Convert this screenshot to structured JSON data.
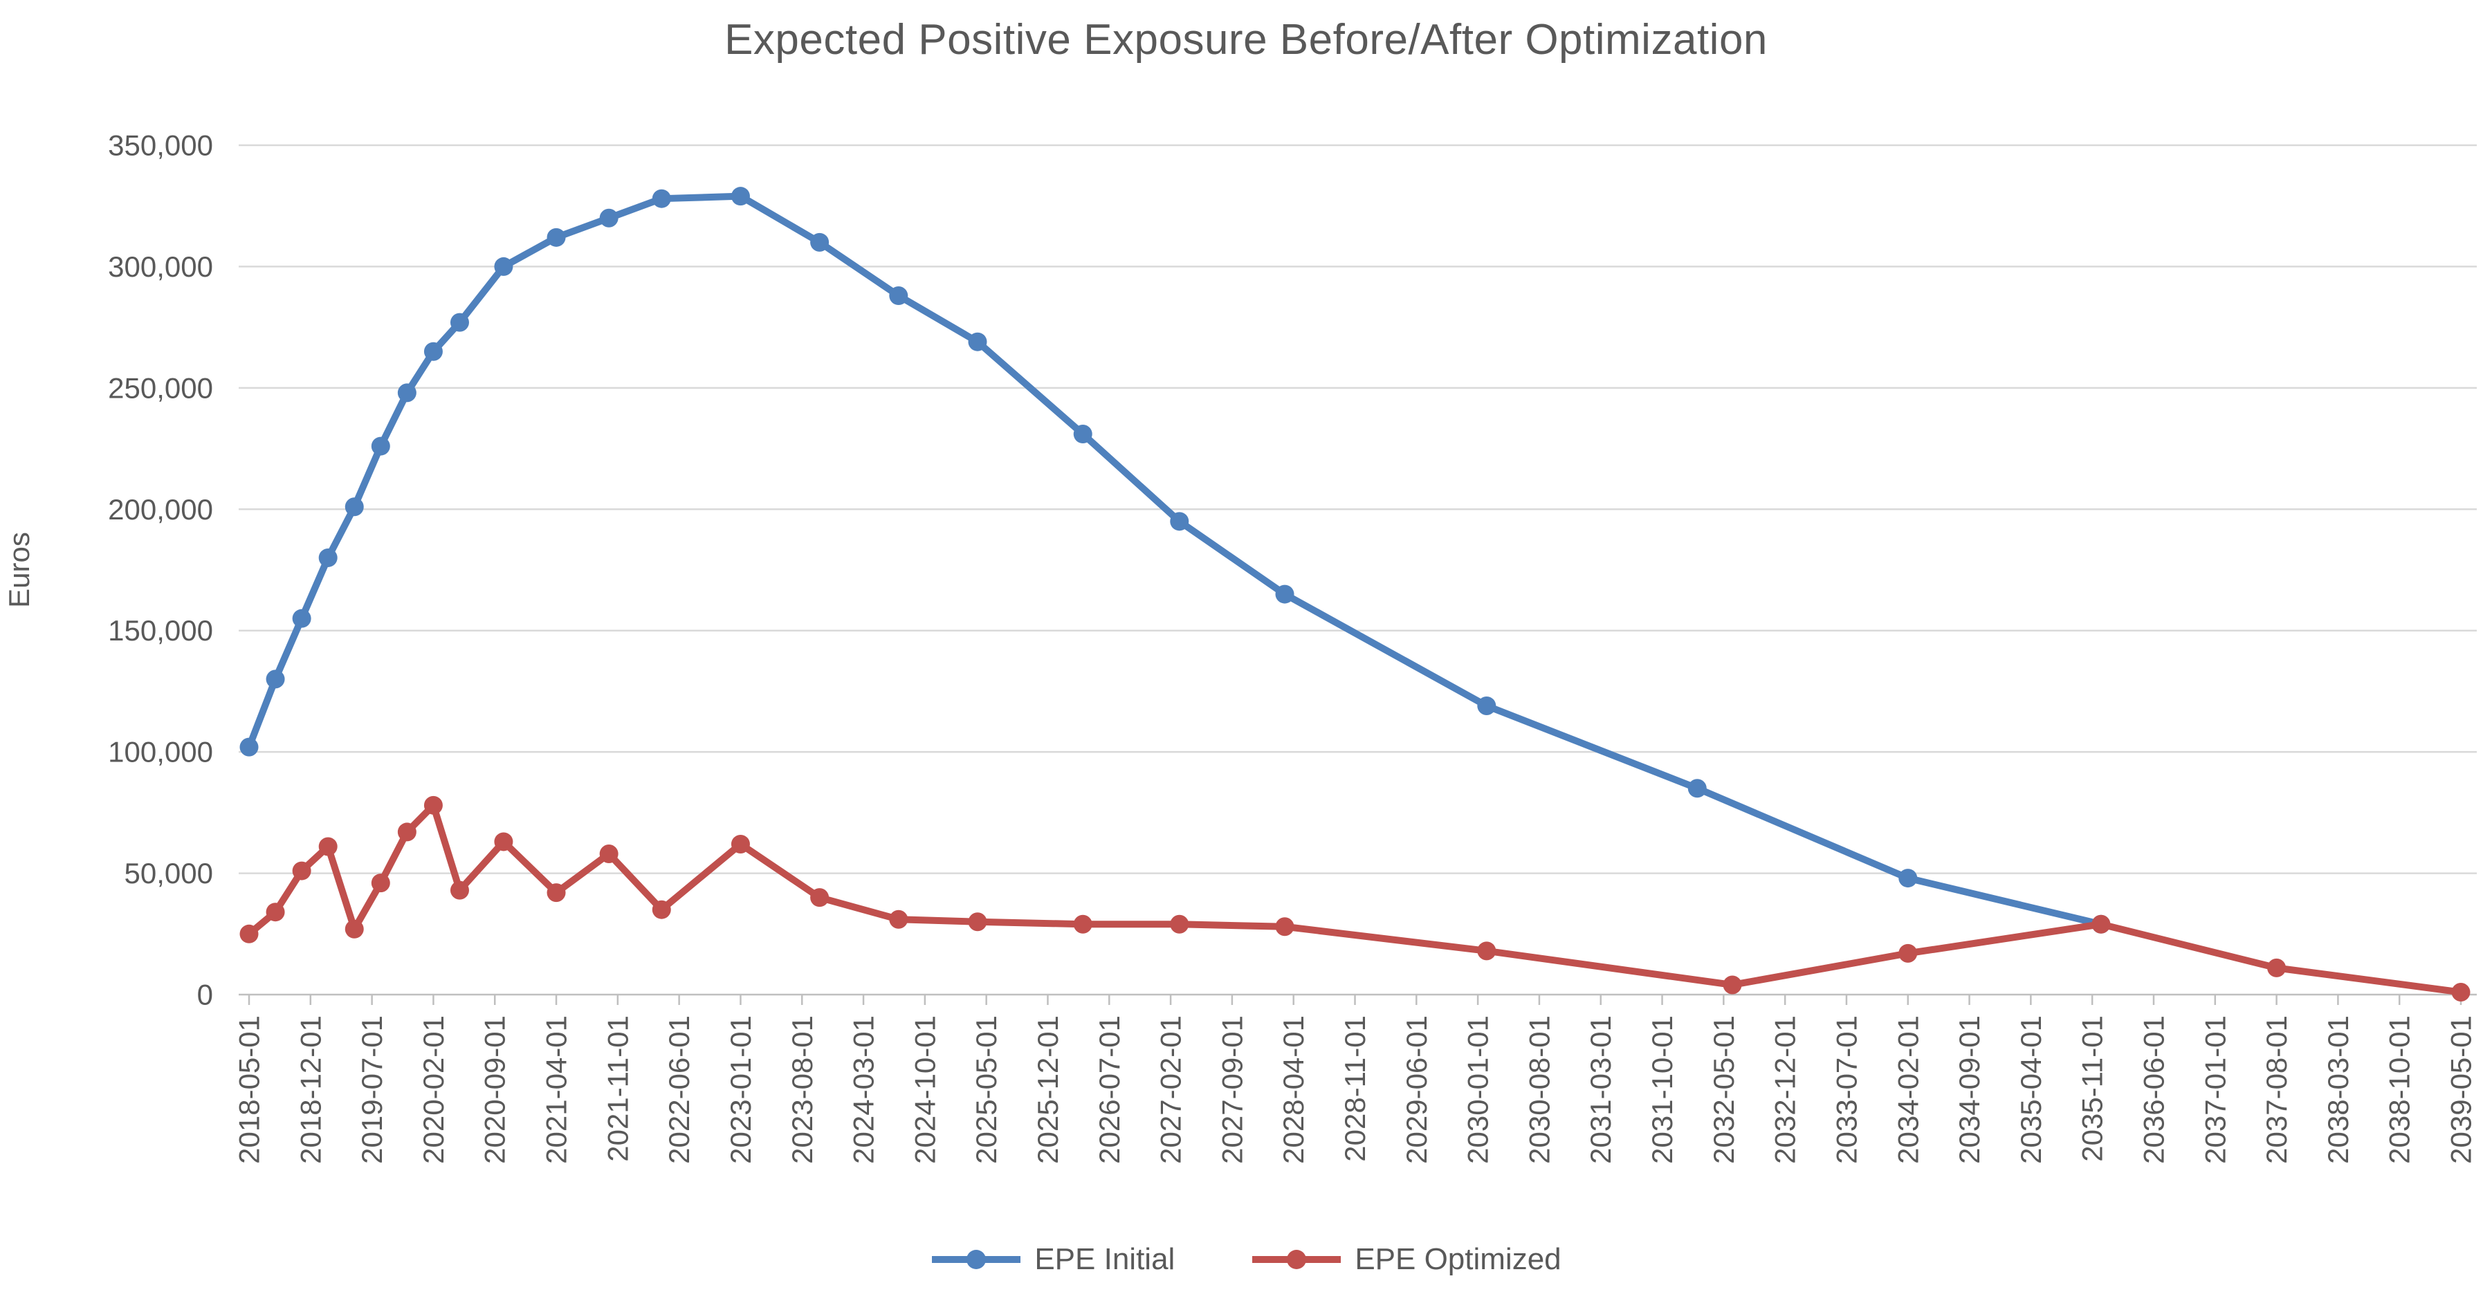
{
  "chart_data": {
    "type": "line",
    "title": "Expected Positive Exposure Before/After Optimization",
    "ylabel": "Euros",
    "xlabel": "",
    "grid": "horizontal",
    "legend_position": "bottom",
    "ylim": [
      0,
      350000
    ],
    "x_axis_start_date": "2018-05-01",
    "x_unit": "months since 2018-05-01",
    "x_tick_interval_months": 7,
    "x_tick_labels": [
      "2018-05-01",
      "2018-12-01",
      "2019-07-01",
      "2020-02-01",
      "2020-09-01",
      "2021-04-01",
      "2021-11-01",
      "2022-06-01",
      "2023-01-01",
      "2023-08-01",
      "2024-03-01",
      "2024-10-01",
      "2025-05-01",
      "2025-12-01",
      "2026-07-01",
      "2027-02-01",
      "2027-09-01",
      "2028-04-01",
      "2028-11-01",
      "2029-06-01",
      "2030-01-01",
      "2030-08-01",
      "2031-03-01",
      "2031-10-01",
      "2032-05-01",
      "2032-12-01",
      "2033-07-01",
      "2034-02-01",
      "2034-09-01",
      "2035-04-01",
      "2035-11-01",
      "2036-06-01",
      "2037-01-01",
      "2037-08-01",
      "2038-03-01",
      "2038-10-01",
      "2039-05-01"
    ],
    "y_ticks": [
      {
        "value": 0,
        "label": "0"
      },
      {
        "value": 50000,
        "label": "50,000"
      },
      {
        "value": 100000,
        "label": "100,000"
      },
      {
        "value": 150000,
        "label": "150,000"
      },
      {
        "value": 200000,
        "label": "200,000"
      },
      {
        "value": 250000,
        "label": "250,000"
      },
      {
        "value": 300000,
        "label": "300,000"
      },
      {
        "value": 350000,
        "label": "350,000"
      }
    ],
    "series": [
      {
        "name": "EPE Initial",
        "color": "#4F81BD",
        "points": [
          {
            "date": "2018-05-01",
            "m": 0,
            "v": 102000
          },
          {
            "date": "2018-08-01",
            "m": 3,
            "v": 130000
          },
          {
            "date": "2018-11-01",
            "m": 6,
            "v": 155000
          },
          {
            "date": "2019-02-01",
            "m": 9,
            "v": 180000
          },
          {
            "date": "2019-05-01",
            "m": 12,
            "v": 201000
          },
          {
            "date": "2019-08-01",
            "m": 15,
            "v": 226000
          },
          {
            "date": "2019-11-01",
            "m": 18,
            "v": 248000
          },
          {
            "date": "2020-02-01",
            "m": 21,
            "v": 265000
          },
          {
            "date": "2020-05-01",
            "m": 24,
            "v": 277000
          },
          {
            "date": "2020-10-01",
            "m": 29,
            "v": 300000
          },
          {
            "date": "2021-04-01",
            "m": 35,
            "v": 312000
          },
          {
            "date": "2021-10-01",
            "m": 41,
            "v": 320000
          },
          {
            "date": "2022-04-01",
            "m": 47,
            "v": 328000
          },
          {
            "date": "2023-01-01",
            "m": 56,
            "v": 329000
          },
          {
            "date": "2023-10-01",
            "m": 65,
            "v": 310000
          },
          {
            "date": "2024-07-01",
            "m": 74,
            "v": 288000
          },
          {
            "date": "2025-04-01",
            "m": 83,
            "v": 269000
          },
          {
            "date": "2026-04-01",
            "m": 95,
            "v": 231000
          },
          {
            "date": "2027-03-01",
            "m": 106,
            "v": 195000
          },
          {
            "date": "2028-03-01",
            "m": 118,
            "v": 165000
          },
          {
            "date": "2030-02-01",
            "m": 141,
            "v": 119000
          },
          {
            "date": "2032-02-01",
            "m": 165,
            "v": 85000
          },
          {
            "date": "2034-02-01",
            "m": 189,
            "v": 48000
          },
          {
            "date": "2035-12-01",
            "m": 211,
            "v": 29000
          }
        ]
      },
      {
        "name": "EPE Optimized",
        "color": "#C0504D",
        "points": [
          {
            "date": "2018-05-01",
            "m": 0,
            "v": 25000
          },
          {
            "date": "2018-08-01",
            "m": 3,
            "v": 34000
          },
          {
            "date": "2018-11-01",
            "m": 6,
            "v": 51000
          },
          {
            "date": "2019-02-01",
            "m": 9,
            "v": 61000
          },
          {
            "date": "2019-05-01",
            "m": 12,
            "v": 27000
          },
          {
            "date": "2019-08-01",
            "m": 15,
            "v": 46000
          },
          {
            "date": "2019-11-01",
            "m": 18,
            "v": 67000
          },
          {
            "date": "2020-02-01",
            "m": 21,
            "v": 78000
          },
          {
            "date": "2020-05-01",
            "m": 24,
            "v": 43000
          },
          {
            "date": "2020-10-01",
            "m": 29,
            "v": 63000
          },
          {
            "date": "2021-04-01",
            "m": 35,
            "v": 42000
          },
          {
            "date": "2021-10-01",
            "m": 41,
            "v": 58000
          },
          {
            "date": "2022-04-01",
            "m": 47,
            "v": 35000
          },
          {
            "date": "2023-01-01",
            "m": 56,
            "v": 62000
          },
          {
            "date": "2023-10-01",
            "m": 65,
            "v": 40000
          },
          {
            "date": "2024-07-01",
            "m": 74,
            "v": 31000
          },
          {
            "date": "2025-04-01",
            "m": 83,
            "v": 30000
          },
          {
            "date": "2026-04-01",
            "m": 95,
            "v": 29000
          },
          {
            "date": "2027-03-01",
            "m": 106,
            "v": 29000
          },
          {
            "date": "2028-03-01",
            "m": 118,
            "v": 28000
          },
          {
            "date": "2030-02-01",
            "m": 141,
            "v": 18000
          },
          {
            "date": "2032-06-01",
            "m": 169,
            "v": 4000
          },
          {
            "date": "2034-02-01",
            "m": 189,
            "v": 17000
          },
          {
            "date": "2035-12-01",
            "m": 211,
            "v": 29000
          },
          {
            "date": "2037-08-01",
            "m": 231,
            "v": 11000
          },
          {
            "date": "2039-05-01",
            "m": 252,
            "v": 1000
          }
        ]
      }
    ]
  },
  "colors": {
    "text": "#595959",
    "gridline": "#D9D9D9",
    "axis": "#BFBFBF",
    "background": "#FFFFFF"
  }
}
